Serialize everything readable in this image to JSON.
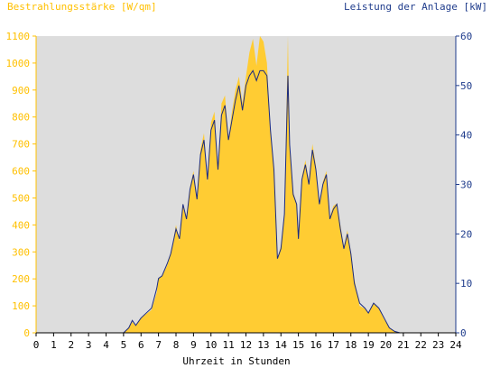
{
  "chart_data": {
    "type": "area",
    "left_axis_title": "Bestrahlungsstärke [W/qm]",
    "right_axis_title": "Leistung der Anlage [kW]",
    "xlabel": "Uhrzeit in Stunden",
    "xlim": [
      0,
      24
    ],
    "x_ticks": [
      "0",
      "1",
      "2",
      "3",
      "4",
      "5",
      "6",
      "7",
      "8",
      "9",
      "10",
      "11",
      "12",
      "13",
      "14",
      "15",
      "16",
      "17",
      "18",
      "19",
      "20",
      "21",
      "22",
      "23",
      "24"
    ],
    "left_ylim": [
      0,
      1100
    ],
    "left_ticks": [
      "0",
      "100",
      "200",
      "300",
      "400",
      "500",
      "600",
      "700",
      "800",
      "900",
      "1000",
      "1100"
    ],
    "right_ylim": [
      0,
      60
    ],
    "right_ticks": [
      "0",
      "10",
      "20",
      "30",
      "40",
      "50",
      "60"
    ],
    "grid": false,
    "colors": {
      "irradiance": "#ffcc33",
      "power": "#1a2a80",
      "plot_background": "#dddddd",
      "left_axis": "#ffc000",
      "right_axis": "#1f3c8c"
    },
    "series": [
      {
        "axis": "left",
        "x": [
          0,
          5,
          5.3,
          5.5,
          5.7,
          6,
          6.3,
          6.6,
          6.9,
          7,
          7.2,
          7.5,
          7.7,
          8,
          8.2,
          8.4,
          8.6,
          8.8,
          9,
          9.2,
          9.4,
          9.6,
          9.8,
          10,
          10.2,
          10.4,
          10.6,
          10.8,
          11,
          11.2,
          11.4,
          11.6,
          11.8,
          12,
          12.2,
          12.4,
          12.6,
          12.8,
          13,
          13.2,
          13.4,
          13.6,
          13.8,
          14,
          14.2,
          14.4,
          14.5,
          14.7,
          14.9,
          15,
          15.2,
          15.4,
          15.6,
          15.8,
          16,
          16.2,
          16.4,
          16.6,
          16.8,
          17,
          17.2,
          17.4,
          17.6,
          17.8,
          18,
          18.2,
          18.5,
          18.8,
          19,
          19.3,
          19.6,
          19.9,
          20.2,
          20.5,
          20.8,
          24
        ],
        "values": [
          0,
          0,
          20,
          40,
          25,
          55,
          70,
          85,
          150,
          200,
          210,
          250,
          290,
          400,
          340,
          480,
          420,
          540,
          600,
          500,
          680,
          740,
          560,
          780,
          820,
          600,
          850,
          880,
          720,
          820,
          900,
          950,
          850,
          950,
          1040,
          1090,
          990,
          1100,
          1080,
          1000,
          750,
          600,
          280,
          320,
          450,
          1100,
          700,
          520,
          480,
          350,
          580,
          640,
          560,
          700,
          620,
          480,
          560,
          600,
          430,
          470,
          480,
          400,
          320,
          380,
          300,
          200,
          100,
          90,
          75,
          110,
          90,
          50,
          20,
          5,
          0,
          0
        ]
      },
      {
        "axis": "right",
        "x": [
          0,
          5,
          5.3,
          5.5,
          5.7,
          6,
          6.3,
          6.6,
          6.9,
          7,
          7.2,
          7.5,
          7.7,
          8,
          8.2,
          8.4,
          8.6,
          8.8,
          9,
          9.2,
          9.4,
          9.6,
          9.8,
          10,
          10.2,
          10.4,
          10.6,
          10.8,
          11,
          11.2,
          11.4,
          11.6,
          11.8,
          12,
          12.2,
          12.4,
          12.6,
          12.8,
          13,
          13.2,
          13.4,
          13.6,
          13.8,
          14,
          14.2,
          14.4,
          14.5,
          14.7,
          14.9,
          15,
          15.2,
          15.4,
          15.6,
          15.8,
          16,
          16.2,
          16.4,
          16.6,
          16.8,
          17,
          17.2,
          17.4,
          17.6,
          17.8,
          18,
          18.2,
          18.5,
          18.8,
          19,
          19.3,
          19.6,
          19.9,
          20.2,
          20.5,
          20.8,
          24
        ],
        "values": [
          0,
          0,
          1,
          2.5,
          1.5,
          3,
          4,
          5,
          9,
          11,
          11.5,
          14,
          16,
          21,
          19,
          26,
          23,
          29,
          32,
          27,
          36,
          39,
          31,
          41,
          43,
          33,
          44,
          46,
          39,
          43,
          47,
          50,
          45,
          50,
          52,
          53,
          51,
          53,
          53,
          52,
          41,
          33,
          15,
          17,
          24,
          52,
          38,
          28,
          26,
          19,
          31,
          34,
          30,
          37,
          33,
          26,
          30,
          32,
          23,
          25,
          26,
          21,
          17,
          20,
          16,
          10,
          6,
          5,
          4,
          6,
          5,
          3,
          1,
          0.3,
          0,
          0
        ]
      }
    ]
  }
}
